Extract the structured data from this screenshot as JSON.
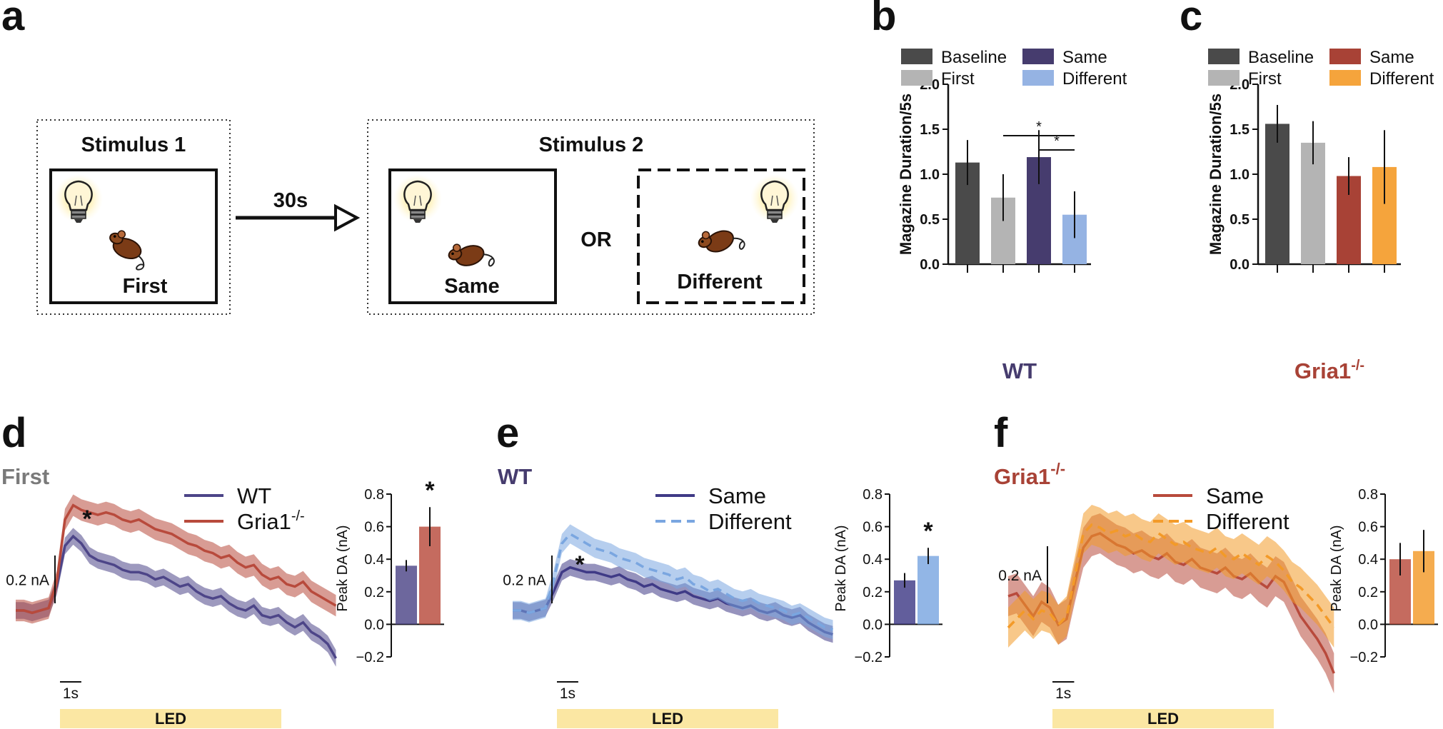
{
  "panel_letters": {
    "a": "a",
    "b": "b",
    "c": "c",
    "d": "d",
    "e": "e",
    "f": "f"
  },
  "schematic": {
    "stimulus1_title": "Stimulus 1",
    "stimulus2_title": "Stimulus 2",
    "delay_label": "30s",
    "first_label": "First",
    "same_label": "Same",
    "different_label": "Different",
    "or_label": "OR"
  },
  "colors": {
    "baseline": "#4a4a4a",
    "first": "#b4b4b4",
    "wt_same": "#463c6e",
    "wt_diff": "#95b3e3",
    "ko_same": "#a84236",
    "ko_diff": "#f5a43c",
    "wt_trace": "#4d4588",
    "ko_trace": "#b84a3c",
    "e_same": "#3f3a86",
    "e_diff": "#7aa6e0",
    "f_same": "#b84a3c",
    "f_diff": "#f39a28",
    "led_bar": "#fbe7a3",
    "ko_label": "#a84236",
    "wt_label": "#463c6e",
    "first_label": "#7a7a7a"
  },
  "chart_data": [
    {
      "id": "b",
      "type": "bar",
      "group_label": "WT",
      "ylabel": "Magazine Duration/5s",
      "ylim": [
        0,
        2.0
      ],
      "yticks": [
        "0.0",
        "0.5",
        "1.0",
        "1.5",
        "2.0"
      ],
      "legend": [
        "Baseline",
        "First",
        "Same",
        "Different"
      ],
      "categories": [
        "Baseline",
        "First",
        "Same",
        "Different"
      ],
      "values": [
        1.13,
        0.74,
        1.19,
        0.55
      ],
      "errors": [
        0.25,
        0.26,
        0.3,
        0.26
      ],
      "significance": [
        {
          "pair": [
            "First",
            "Different"
          ],
          "label": "*"
        },
        {
          "pair": [
            "Same",
            "Different"
          ],
          "label": "*"
        }
      ]
    },
    {
      "id": "c",
      "type": "bar",
      "group_label": "Gria1",
      "group_label_sup": "-/-",
      "ylabel": "Magazine Duration/5s",
      "ylim": [
        0,
        2.0
      ],
      "yticks": [
        "0.0",
        "0.5",
        "1.0",
        "1.5",
        "2.0"
      ],
      "legend": [
        "Baseline",
        "First",
        "Same",
        "Different"
      ],
      "categories": [
        "Baseline",
        "First",
        "Same",
        "Different"
      ],
      "values": [
        1.56,
        1.35,
        0.98,
        1.08
      ],
      "errors": [
        0.21,
        0.24,
        0.21,
        0.41
      ]
    },
    {
      "id": "d",
      "type": "line",
      "title": "First",
      "series": [
        {
          "name": "WT",
          "style": "solid",
          "values": [
            0.0,
            0.0,
            -0.01,
            0.0,
            0.01,
            0.1,
            0.27,
            0.31,
            0.28,
            0.23,
            0.21,
            0.2,
            0.19,
            0.17,
            0.16,
            0.16,
            0.15,
            0.13,
            0.14,
            0.12,
            0.1,
            0.11,
            0.08,
            0.06,
            0.05,
            0.06,
            0.03,
            0.01,
            0.0,
            0.02,
            -0.02,
            -0.03,
            -0.02,
            -0.05,
            -0.07,
            -0.05,
            -0.09,
            -0.11,
            -0.14,
            -0.2
          ],
          "band": 0.035
        },
        {
          "name": "Gria1",
          "sup": "-/-",
          "style": "solid",
          "values": [
            0.0,
            0.0,
            -0.01,
            0.0,
            0.01,
            0.12,
            0.38,
            0.44,
            0.42,
            0.41,
            0.4,
            0.41,
            0.4,
            0.38,
            0.37,
            0.38,
            0.36,
            0.34,
            0.33,
            0.32,
            0.3,
            0.28,
            0.27,
            0.25,
            0.24,
            0.22,
            0.23,
            0.2,
            0.18,
            0.19,
            0.15,
            0.13,
            0.14,
            0.11,
            0.1,
            0.12,
            0.08,
            0.06,
            0.04,
            0.02
          ],
          "band": 0.045
        }
      ],
      "scale_bar_y": "0.2 nA",
      "scale_bar_x": "1s",
      "stim_label": "LED",
      "annotation": "*"
    },
    {
      "id": "d-inset",
      "type": "bar",
      "ylabel": "Peak DA (nA)",
      "ylim": [
        -0.2,
        0.8
      ],
      "yticks": [
        "−0.2",
        "0.0",
        "0.2",
        "0.4",
        "0.6",
        "0.8"
      ],
      "categories": [
        "WT",
        "Gria1-/-"
      ],
      "values": [
        0.36,
        0.6
      ],
      "errors": [
        0.035,
        0.12
      ],
      "annotation": "*"
    },
    {
      "id": "e",
      "type": "line",
      "title": "WT",
      "series": [
        {
          "name": "Same",
          "style": "solid",
          "values": [
            0.0,
            0.0,
            -0.01,
            0.0,
            0.01,
            0.08,
            0.16,
            0.18,
            0.17,
            0.16,
            0.16,
            0.15,
            0.14,
            0.15,
            0.13,
            0.12,
            0.1,
            0.11,
            0.09,
            0.08,
            0.07,
            0.08,
            0.06,
            0.05,
            0.04,
            0.05,
            0.03,
            0.02,
            0.01,
            0.02,
            0.0,
            -0.01,
            0.0,
            -0.02,
            -0.03,
            -0.02,
            -0.05,
            -0.07,
            -0.09,
            -0.1
          ],
          "band": 0.035
        },
        {
          "name": "Different",
          "style": "dashed",
          "values": [
            0.0,
            0.0,
            -0.01,
            0.0,
            0.01,
            0.13,
            0.28,
            0.32,
            0.3,
            0.28,
            0.26,
            0.25,
            0.24,
            0.22,
            0.21,
            0.2,
            0.18,
            0.17,
            0.16,
            0.15,
            0.13,
            0.14,
            0.11,
            0.1,
            0.08,
            0.09,
            0.07,
            0.05,
            0.04,
            0.05,
            0.03,
            0.02,
            0.01,
            0.0,
            -0.02,
            -0.01,
            -0.03,
            -0.05,
            -0.07,
            -0.08
          ],
          "band": 0.04
        }
      ],
      "scale_bar_y": "0.2 nA",
      "scale_bar_x": "1s",
      "stim_label": "LED",
      "annotation": "*"
    },
    {
      "id": "e-inset",
      "type": "bar",
      "ylabel": "Peak DA (nA)",
      "ylim": [
        -0.2,
        0.8
      ],
      "yticks": [
        "−0.2",
        "0.0",
        "0.2",
        "0.4",
        "0.6",
        "0.8"
      ],
      "categories": [
        "Same",
        "Different"
      ],
      "values": [
        0.27,
        0.42
      ],
      "errors": [
        0.045,
        0.05
      ],
      "annotation": "*"
    },
    {
      "id": "f",
      "type": "line",
      "title": "Gria1",
      "title_sup": "-/-",
      "series": [
        {
          "name": "Same",
          "style": "solid",
          "values": [
            0.05,
            0.06,
            0.02,
            -0.02,
            0.03,
            0.01,
            -0.05,
            -0.03,
            0.1,
            0.22,
            0.26,
            0.27,
            0.25,
            0.23,
            0.22,
            0.2,
            0.21,
            0.19,
            0.18,
            0.2,
            0.17,
            0.16,
            0.18,
            0.15,
            0.14,
            0.13,
            0.15,
            0.12,
            0.11,
            0.13,
            0.1,
            0.08,
            0.12,
            0.1,
            0.04,
            -0.02,
            -0.06,
            -0.1,
            -0.15,
            -0.22
          ],
          "band": 0.07
        },
        {
          "name": "Different",
          "style": "dashed",
          "values": [
            -0.06,
            -0.03,
            0.0,
            -0.03,
            0.0,
            -0.01,
            -0.05,
            -0.02,
            0.12,
            0.27,
            0.3,
            0.29,
            0.27,
            0.28,
            0.26,
            0.27,
            0.25,
            0.24,
            0.27,
            0.25,
            0.23,
            0.24,
            0.22,
            0.21,
            0.2,
            0.22,
            0.19,
            0.18,
            0.2,
            0.18,
            0.16,
            0.19,
            0.17,
            0.14,
            0.1,
            0.08,
            0.05,
            0.02,
            -0.02,
            -0.06
          ],
          "band": 0.07
        }
      ],
      "scale_bar_y": "0.2 nA",
      "scale_bar_x": "1s",
      "stim_label": "LED"
    },
    {
      "id": "f-inset",
      "type": "bar",
      "ylabel": "Peak DA (nA)",
      "ylim": [
        -0.2,
        0.8
      ],
      "yticks": [
        "−0.2",
        "0.0",
        "0.2",
        "0.4",
        "0.6",
        "0.8"
      ],
      "categories": [
        "Same",
        "Different"
      ],
      "values": [
        0.4,
        0.45
      ],
      "errors": [
        0.1,
        0.13
      ]
    }
  ]
}
